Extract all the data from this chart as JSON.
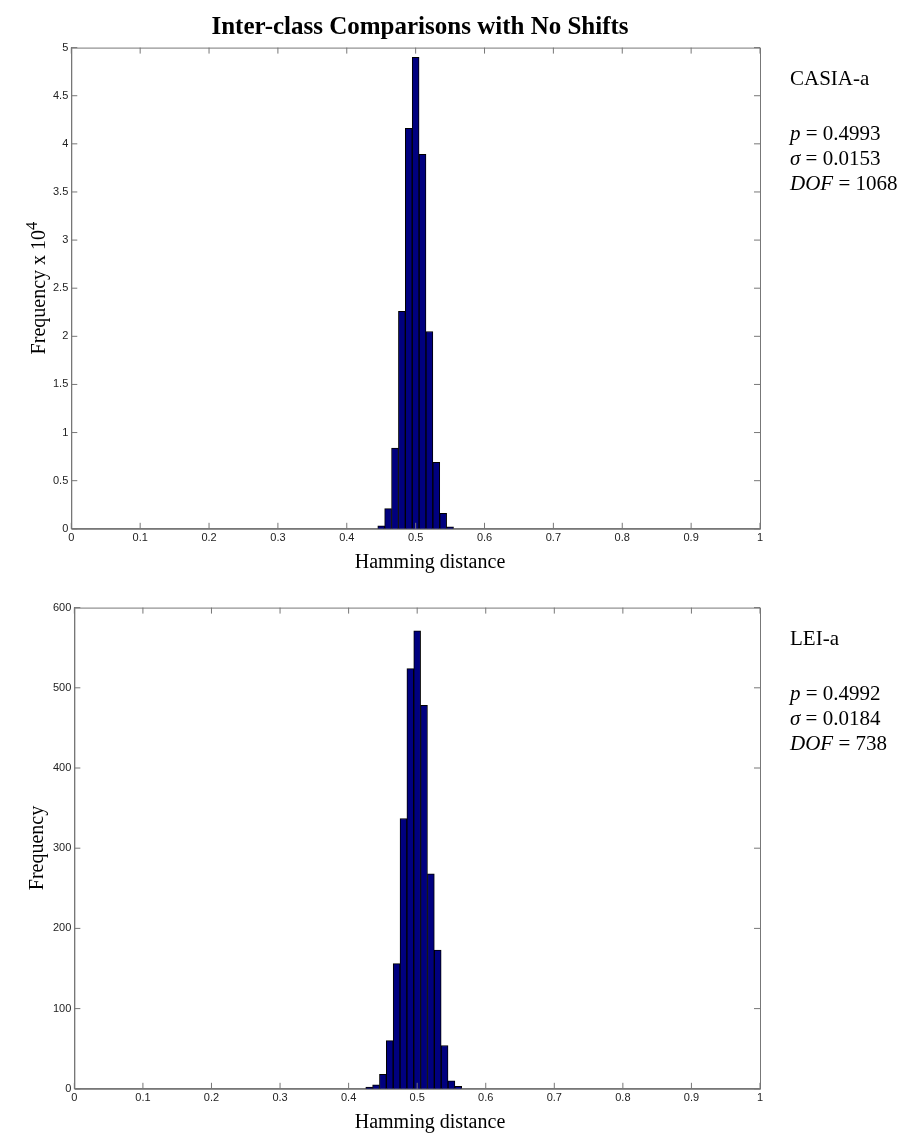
{
  "chart_data": [
    {
      "type": "histogram",
      "title": "Inter-class Comparisons with No Shifts",
      "xlabel": "Hamming distance",
      "ylabel": "Frequency x 10$^{4}$",
      "bins": [
        0.445,
        0.455,
        0.465,
        0.475,
        0.485,
        0.495,
        0.505,
        0.515,
        0.525,
        0.535,
        0.545,
        0.555
      ],
      "values": [
        0.03,
        0.21,
        0.84,
        2.26,
        4.16,
        4.9,
        3.89,
        2.05,
        0.69,
        0.16,
        0.02
      ],
      "color": "#00007f",
      "xlim": [
        0,
        1
      ],
      "xticks": [
        0,
        0.1,
        0.2,
        0.3,
        0.4,
        0.5,
        0.6,
        0.7,
        0.8,
        0.9,
        1
      ],
      "ylim": [
        0,
        5
      ],
      "yticks": [
        0,
        0.5,
        1,
        1.5,
        2,
        2.5,
        3,
        3.5,
        4,
        4.5,
        5
      ],
      "grid": false,
      "annotations": [
        "CASIA-a",
        "p = 0.4993",
        "σ = 0.0153",
        "DOF = 1068"
      ]
    },
    {
      "type": "histogram",
      "xlabel": "Hamming distance",
      "ylabel": "Frequency",
      "bins": [
        0.425,
        0.435,
        0.445,
        0.455,
        0.465,
        0.475,
        0.485,
        0.495,
        0.505,
        0.515,
        0.525,
        0.535,
        0.545,
        0.555,
        0.565
      ],
      "values": [
        2,
        5,
        18,
        60,
        156,
        337,
        524,
        571,
        478,
        268,
        173,
        54,
        10,
        3
      ],
      "color": "#00007f",
      "xlim": [
        0,
        1
      ],
      "xticks": [
        0,
        0.1,
        0.2,
        0.3,
        0.4,
        0.5,
        0.6,
        0.7,
        0.8,
        0.9,
        1
      ],
      "ylim": [
        0,
        600
      ],
      "yticks": [
        0,
        100,
        200,
        300,
        400,
        500,
        600
      ],
      "grid": false,
      "annotations": [
        "LEI-a",
        "p = 0.4992",
        "σ = 0.0184",
        "DOF = 738"
      ]
    }
  ]
}
